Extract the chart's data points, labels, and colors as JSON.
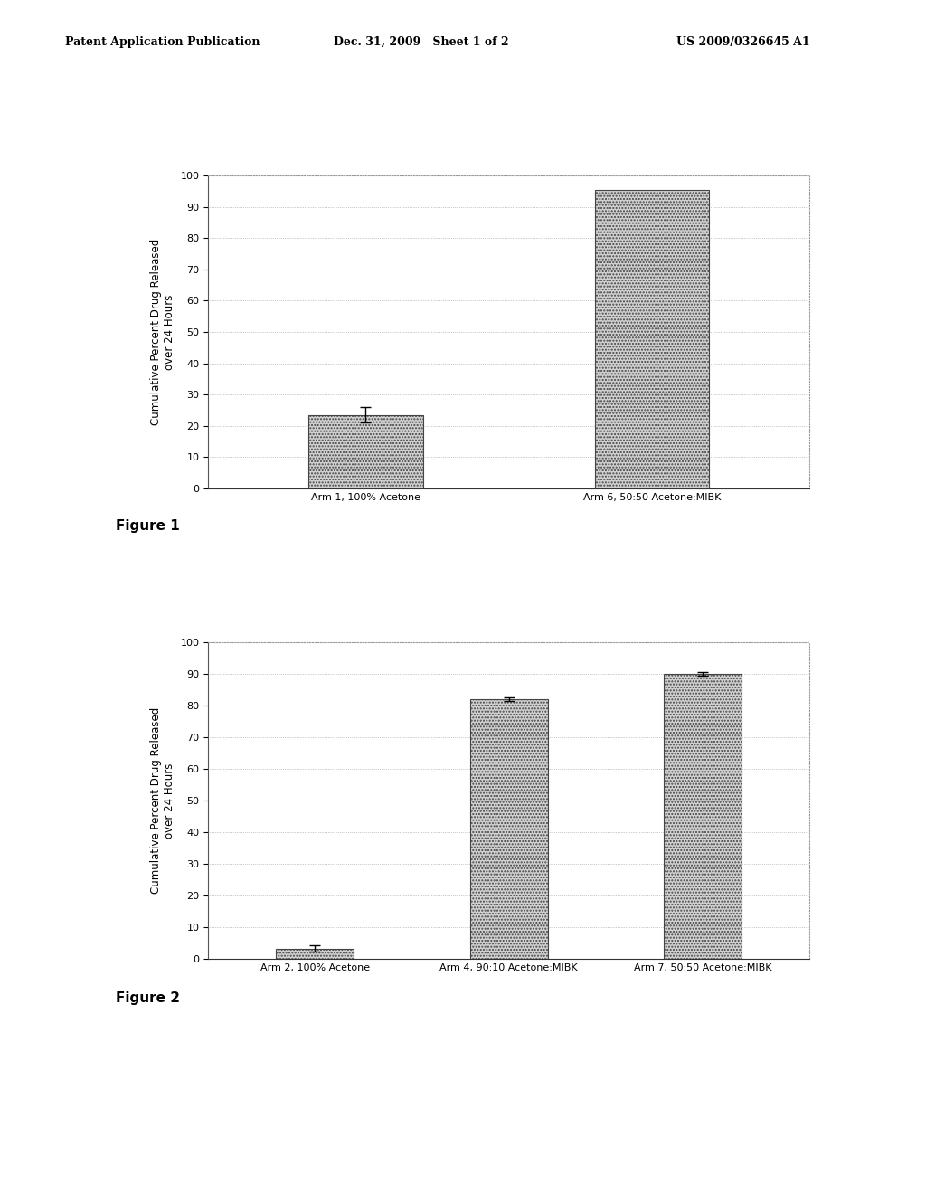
{
  "fig1": {
    "categories": [
      "Arm 1, 100% Acetone",
      "Arm 6, 50:50 Acetone:MIBK"
    ],
    "values": [
      23.5,
      95.5
    ],
    "errors": [
      2.5,
      0.0
    ],
    "ylabel": "Cumulative Percent Drug Released\nover 24 Hours",
    "ylim": [
      0,
      100
    ],
    "yticks": [
      0,
      10,
      20,
      30,
      40,
      50,
      60,
      70,
      80,
      90,
      100
    ],
    "caption": "Figure 1",
    "bar_color": "#d0d0d0",
    "bar_hatch": ".....",
    "bar_edgecolor": "#444444"
  },
  "fig2": {
    "categories": [
      "Arm 2, 100% Acetone",
      "Arm 4, 90:10 Acetone:MIBK",
      "Arm 7, 50:50 Acetone:MIBK"
    ],
    "values": [
      3.2,
      82.0,
      90.0
    ],
    "errors": [
      1.0,
      0.5,
      0.5
    ],
    "ylabel": "Cumulative Percent Drug Released\nover 24 Hours",
    "ylim": [
      0,
      100
    ],
    "yticks": [
      0,
      10,
      20,
      30,
      40,
      50,
      60,
      70,
      80,
      90,
      100
    ],
    "caption": "Figure 2",
    "bar_color": "#d0d0d0",
    "bar_hatch": ".....",
    "bar_edgecolor": "#444444"
  },
  "header_left": "Patent Application Publication",
  "header_center": "Dec. 31, 2009   Sheet 1 of 2",
  "header_right": "US 2009/0326645 A1",
  "background_color": "#ffffff",
  "grid_color": "#999999",
  "text_color": "#000000",
  "font_size_axis": 8.5,
  "font_size_tick": 8,
  "font_size_caption": 11,
  "font_size_header": 9
}
